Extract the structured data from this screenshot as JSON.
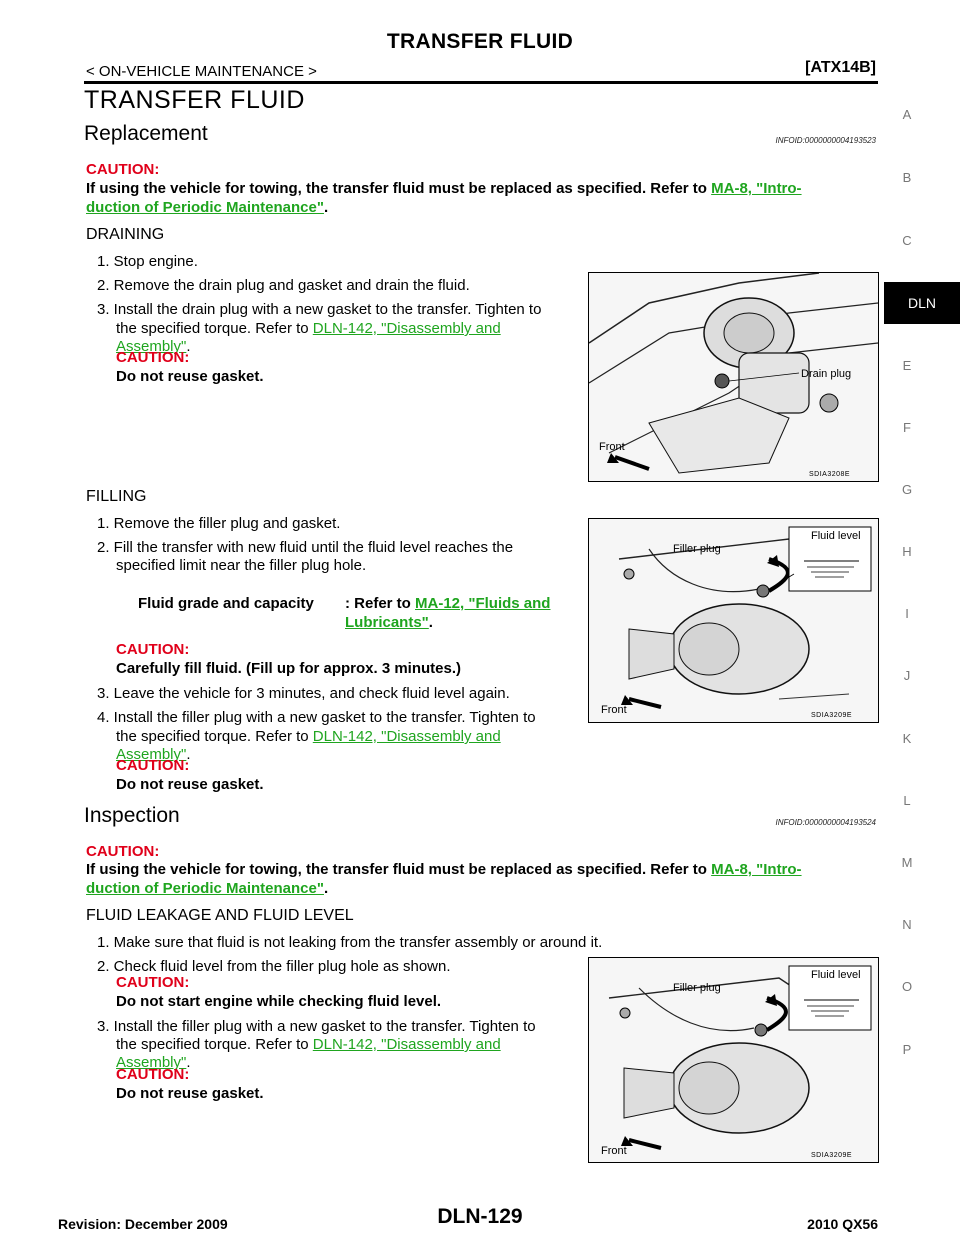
{
  "header": {
    "title": "TRANSFER FLUID",
    "section": "< ON-VEHICLE MAINTENANCE >",
    "model_code": "[ATX14B]"
  },
  "page_title": "TRANSFER FLUID",
  "sidebar": {
    "letters": [
      "A",
      "B",
      "C",
      "DLN",
      "E",
      "F",
      "G",
      "H",
      "I",
      "J",
      "K",
      "L",
      "M",
      "N",
      "O",
      "P"
    ],
    "active": "DLN"
  },
  "replacement": {
    "heading": "Replacement",
    "infoid": "INFOID:0000000004193523",
    "caution_label": "CAUTION:",
    "caution_text": "If using the vehicle for towing, the transfer fluid must be replaced as specified. Refer to ",
    "caution_link_1": "MA-8, \"Intro-",
    "caution_link_2": "duction of Periodic Maintenance\"",
    "caution_end": ".",
    "draining": {
      "heading": "DRAINING",
      "step1": "1.  Stop engine.",
      "step2": "2.  Remove the drain plug and gasket and drain the fluid.",
      "step3_line1": "3.  Install the drain plug with a new gasket to the transfer. Tighten to",
      "step3_line2": "the specified torque. Refer to ",
      "step3_link1": "DLN-142, \"Disassembly and",
      "step3_link2": "Assembly\"",
      "step3_end": ".",
      "caution_label": "CAUTION:",
      "caution_text": "Do not reuse gasket.",
      "figure": {
        "label_drain": "Drain plug",
        "label_front": "Front",
        "code": "SDIA3208E"
      }
    },
    "filling": {
      "heading": "FILLING",
      "step1": "1.  Remove the filler plug and gasket.",
      "step2_line1": "2.  Fill the transfer with new fluid until the fluid level reaches the",
      "step2_line2": "specified limit near the filler plug hole.",
      "spec_label": "Fluid grade and capacity",
      "spec_prefix": ": Refer to ",
      "spec_link1": "MA-12, \"Fluids and",
      "spec_link2": "Lubricants\"",
      "spec_end": ".",
      "caution_label": "CAUTION:",
      "caution_text": "Carefully fill fluid. (Fill up for approx. 3 minutes.)",
      "step3": "3.  Leave the vehicle for 3 minutes, and check fluid level again.",
      "step4_line1": "4.  Install the filler plug with a new gasket to the transfer. Tighten to",
      "step4_line2": "the specified torque. Refer to ",
      "step4_link1": "DLN-142, \"Disassembly and",
      "step4_link2": "Assembly\"",
      "step4_end": ".",
      "caution2_label": "CAUTION:",
      "caution2_text": "Do not reuse gasket.",
      "figure": {
        "label_filler": "Filler plug",
        "label_level": "Fluid level",
        "label_front": "Front",
        "code": "SDIA3209E"
      }
    }
  },
  "inspection": {
    "heading": "Inspection",
    "infoid": "INFOID:0000000004193524",
    "caution_label": "CAUTION:",
    "caution_text": "If using the vehicle for towing, the transfer fluid must be replaced as specified. Refer to ",
    "caution_link_1": "MA-8, \"Intro-",
    "caution_link_2": "duction of Periodic Maintenance\"",
    "caution_end": ".",
    "leakage": {
      "heading": "FLUID LEAKAGE AND FLUID LEVEL",
      "step1": "1.  Make sure that fluid is not leaking from the transfer assembly or around it.",
      "step2": "2.  Check fluid level from the filler plug hole as shown.",
      "caution_label": "CAUTION:",
      "caution_text": "Do not start engine while checking fluid level.",
      "step3_line1": "3.  Install the filler plug with a new gasket to the transfer. Tighten to",
      "step3_line2": "the specified torque. Refer to ",
      "step3_link1": "DLN-142, \"Disassembly and",
      "step3_link2": "Assembly\"",
      "step3_end": ".",
      "caution2_label": "CAUTION:",
      "caution2_text": "Do not reuse gasket.",
      "figure": {
        "label_filler": "Filler plug",
        "label_level": "Fluid level",
        "label_front": "Front",
        "code": "SDIA3209E"
      }
    }
  },
  "footer": {
    "revision": "Revision: December 2009",
    "page": "DLN-129",
    "model": "2010 QX56"
  }
}
